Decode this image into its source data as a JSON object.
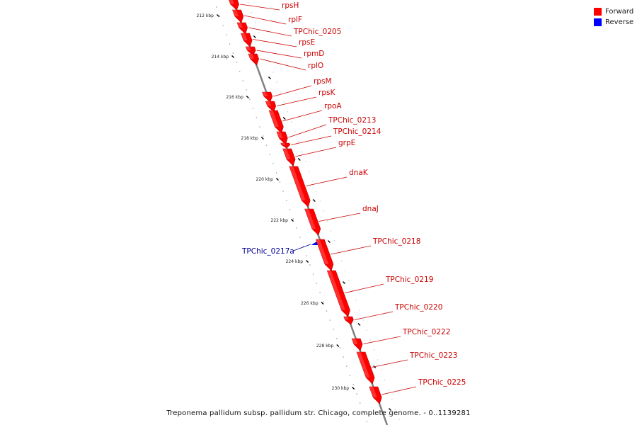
{
  "legend": {
    "forward_label": "Forward",
    "reverse_label": "Reverse",
    "forward_color": "#ff0000",
    "reverse_color": "#0000ff"
  },
  "caption": "Treponema pallidum subsp. pallidum str. Chicago, complete genome. - 0..1139281",
  "colors": {
    "forward": "#ff0000",
    "reverse": "#0000ff",
    "backbone": "#808080",
    "forward_label": "#cc0000",
    "reverse_label": "#000099"
  },
  "ticks": [
    {
      "kbp": 212,
      "label": "212 kbp"
    },
    {
      "kbp": 214,
      "label": "214 kbp"
    },
    {
      "kbp": 216,
      "label": "216 kbp"
    },
    {
      "kbp": 218,
      "label": "218 kbp"
    },
    {
      "kbp": 220,
      "label": "220 kbp"
    },
    {
      "kbp": 222,
      "label": "222 kbp"
    },
    {
      "kbp": 224,
      "label": "224 kbp"
    },
    {
      "kbp": 226,
      "label": "226 kbp"
    },
    {
      "kbp": 228,
      "label": "228 kbp"
    },
    {
      "kbp": 230,
      "label": "230 kbp"
    }
  ],
  "genes": [
    {
      "name": "rpsH",
      "strand": "forward"
    },
    {
      "name": "rplF",
      "strand": "forward"
    },
    {
      "name": "TPChic_0205",
      "strand": "forward"
    },
    {
      "name": "rpsE",
      "strand": "forward"
    },
    {
      "name": "rpmD",
      "strand": "forward"
    },
    {
      "name": "rplO",
      "strand": "forward"
    },
    {
      "name": "rpsM",
      "strand": "forward"
    },
    {
      "name": "rpsK",
      "strand": "forward"
    },
    {
      "name": "rpoA",
      "strand": "forward"
    },
    {
      "name": "TPChic_0213",
      "strand": "forward"
    },
    {
      "name": "TPChic_0214",
      "strand": "forward"
    },
    {
      "name": "grpE",
      "strand": "forward"
    },
    {
      "name": "dnaK",
      "strand": "forward"
    },
    {
      "name": "dnaJ",
      "strand": "forward"
    },
    {
      "name": "TPChic_0217a",
      "strand": "reverse"
    },
    {
      "name": "TPChic_0218",
      "strand": "forward"
    },
    {
      "name": "TPChic_0219",
      "strand": "forward"
    },
    {
      "name": "TPChic_0220",
      "strand": "forward"
    },
    {
      "name": "TPChic_0222",
      "strand": "forward"
    },
    {
      "name": "TPChic_0223",
      "strand": "forward"
    },
    {
      "name": "TPChic_0225",
      "strand": "forward"
    }
  ]
}
